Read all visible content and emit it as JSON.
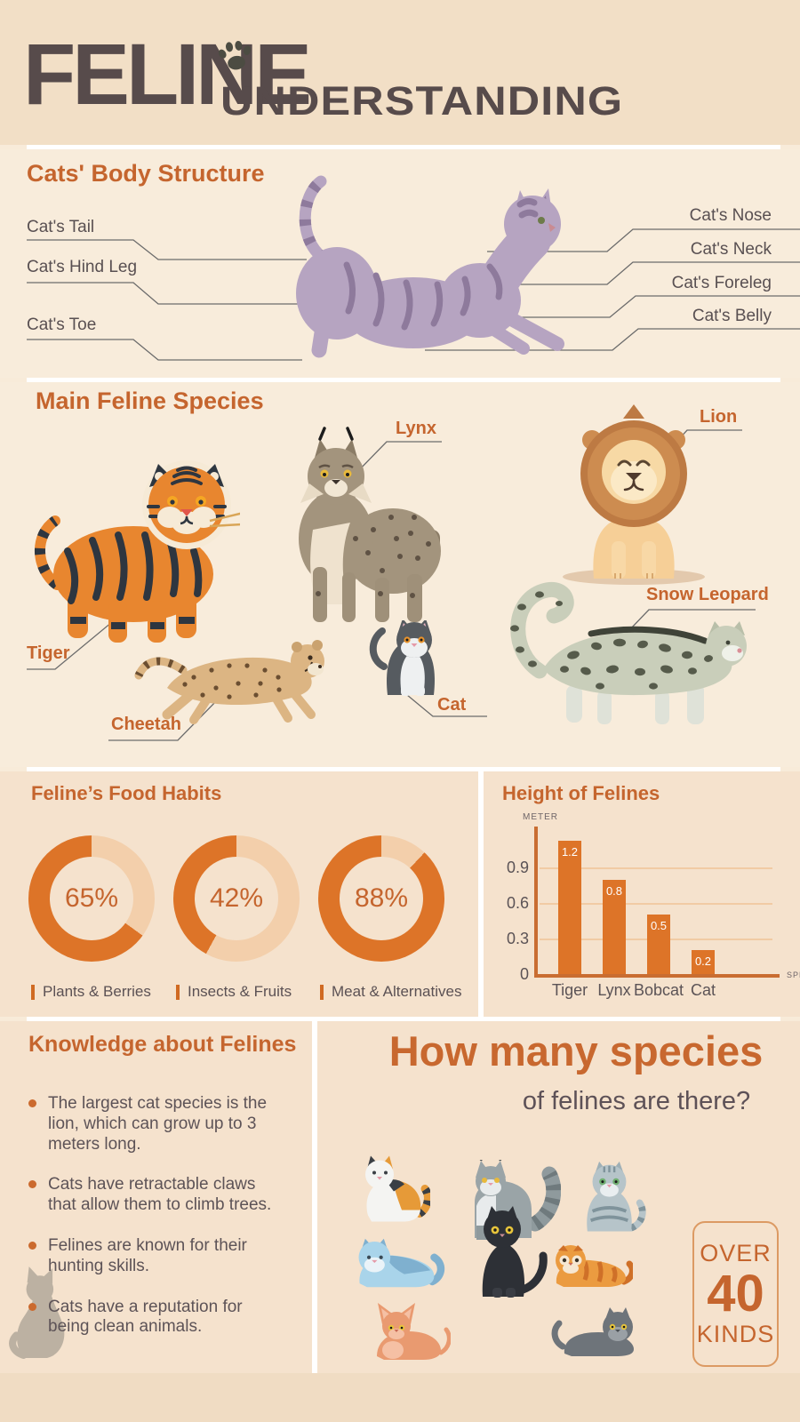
{
  "header": {
    "title": "FELINE",
    "subtitle": "UNDERSTANDING"
  },
  "body_structure": {
    "heading": "Cats' Body Structure",
    "left_labels": [
      "Cat's Tail",
      "Cat's Hind Leg",
      "Cat's Toe"
    ],
    "right_labels": [
      "Cat's Nose",
      "Cat's Neck",
      "Cat's Foreleg",
      "Cat's Belly"
    ]
  },
  "species": {
    "heading": "Main Feline Species",
    "labels": {
      "tiger": "Tiger",
      "lynx": "Lynx",
      "lion": "Lion",
      "cheetah": "Cheetah",
      "cat": "Cat",
      "snow_leopard": "Snow Leopard"
    }
  },
  "food_habits": {
    "heading": "Feline’s Food Habits",
    "donuts": [
      {
        "percent": 65,
        "percent_label": "65%",
        "label": "Plants & Berries"
      },
      {
        "percent": 42,
        "percent_label": "42%",
        "label": "Insects & Fruits"
      },
      {
        "percent": 88,
        "percent_label": "88%",
        "label": "Meat & Alternatives"
      }
    ]
  },
  "chart_data": {
    "type": "bar",
    "title": "Height of Felines",
    "ylabel": "METER",
    "xlabel": "SPECIES",
    "categories": [
      "Tiger",
      "Lynx",
      "Bobcat",
      "Cat"
    ],
    "values": [
      1.2,
      0.8,
      0.5,
      0.2
    ],
    "yticks": [
      0,
      0.3,
      0.6,
      0.9
    ],
    "ylim": [
      0,
      1.2
    ],
    "grid": true,
    "legend_position": "none",
    "bar_color": "#dd7428"
  },
  "knowledge": {
    "heading": "Knowledge about Felines",
    "bullets": [
      "The largest cat species is the lion, which can grow up to 3 meters long.",
      "Cats have retractable claws that allow them to climb trees.",
      "Felines are known for their hunting skills.",
      "Cats have a reputation for being clean animals."
    ]
  },
  "how_many": {
    "title_line1": "How many species",
    "title_line2": "of felines are there?",
    "badge": {
      "over": "OVER",
      "number": "40",
      "kinds": "KINDS"
    }
  },
  "colors": {
    "accent_orange": "#c5652e",
    "chart_orange": "#dd7428",
    "donut_track": "#f3cfab",
    "header_bg": "#f2dfc6",
    "section_light": "#f8ecdb",
    "section_dark": "#f5e2cd",
    "title_brown": "#574b4b",
    "body_text": "#5d5357"
  }
}
